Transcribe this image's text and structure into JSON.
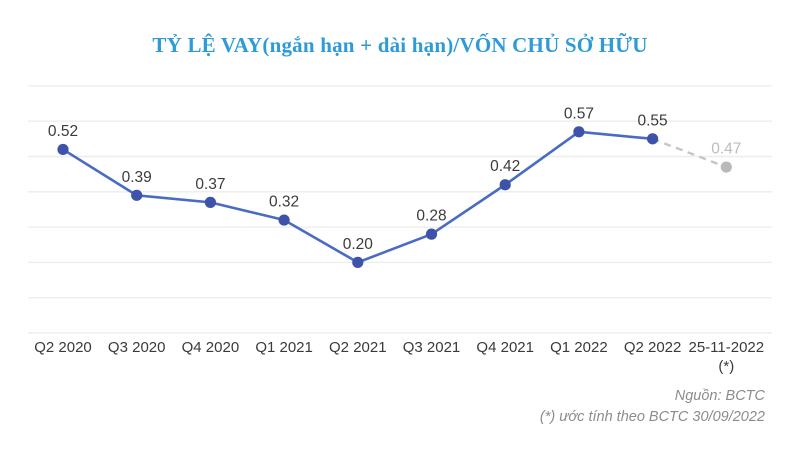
{
  "title": "TỶ LỆ VAY(ngắn hạn + dài hạn)/VỐN CHỦ SỞ HỮU",
  "footer": {
    "source": "Nguồn: BCTC",
    "note": "(*) ước tính theo BCTC 30/09/2022"
  },
  "colors": {
    "title": "#2e9bd6",
    "line": "#4a6bc5",
    "marker": "#3d52a8",
    "estimate_line": "#c6c6c6",
    "estimate_marker": "#b9b9b9",
    "estimate_label": "#bdbdbd",
    "gridline": "#ededed",
    "value_label": "#3b3b3b",
    "axis_label": "#3a3a3a",
    "footer_text": "#8c8c8c"
  },
  "chart_data": {
    "type": "line",
    "categories": [
      "Q2 2020",
      "Q3 2020",
      "Q4 2020",
      "Q1 2021",
      "Q2 2021",
      "Q3 2021",
      "Q4 2021",
      "Q1 2022",
      "Q2 2022",
      "25-11-2022"
    ],
    "last_category_note": "(*)",
    "values": [
      0.52,
      0.39,
      0.37,
      0.32,
      0.2,
      0.28,
      0.42,
      0.57,
      0.55,
      0.47
    ],
    "data_labels": [
      "0.52",
      "0.39",
      "0.37",
      "0.32",
      "0.20",
      "0.28",
      "0.42",
      "0.57",
      "0.55",
      "0.47"
    ],
    "estimated_index": 9,
    "estimated_note": "last point is an estimate, drawn dashed gray",
    "title": "TỶ LỆ VAY(ngắn hạn + dài hạn)/VỐN CHỦ SỞ HỮU",
    "xlabel": "",
    "ylabel": "",
    "ylim": [
      0,
      0.7
    ],
    "grid_step": 0.1,
    "grid": true,
    "legend_position": "none"
  }
}
